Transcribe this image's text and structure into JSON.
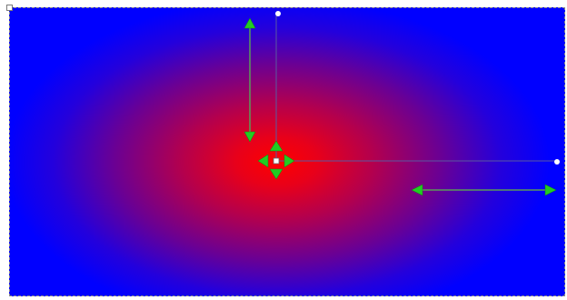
{
  "gradient": {
    "type": "radial",
    "center_color": "#ff0000",
    "edge_color": "#0000ff"
  },
  "colors": {
    "handle_arrow": "#22cc22",
    "handle_arrow_stroke": "#118811",
    "guide_line": "#5a5aa0",
    "control_point": "#ffffff",
    "selection_border": "#8a8a8a"
  },
  "icons": {
    "center_handle": "move-arrows-icon",
    "vertical_radius_handle": "vertical-double-arrow-icon",
    "horizontal_radius_handle": "horizontal-double-arrow-icon"
  }
}
